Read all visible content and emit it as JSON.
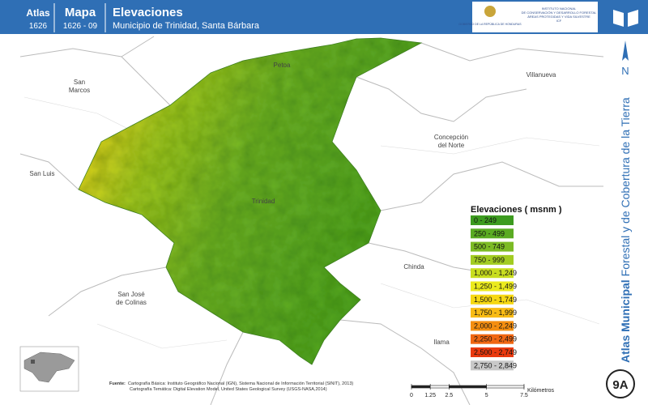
{
  "header": {
    "atlas_label": "Atlas",
    "atlas_code": "1626",
    "map_label": "Mapa",
    "map_code": "1626 - 09",
    "title": "Elevaciones",
    "subtitle": "Municipio de Trinidad, Santa Bárbara",
    "logo_left": "GOBIERNO DE LA REPÚBLICA DE HONDURAS",
    "logo_right": [
      "INSTITUTO NACIONAL",
      "DE CONSERVACIÓN Y DESARROLLO FORESTAL",
      "ÁREAS PROTEGIDAS Y VIDA SILVESTRE",
      "ICF"
    ]
  },
  "sidebar": {
    "north": "N",
    "title_bold": "Atlas Municipal",
    "title_rest": "Forestal y de Cobertura de la Tierra",
    "page": "9A"
  },
  "places": [
    {
      "lines": [
        "Petoa"
      ]
    },
    {
      "lines": [
        "San",
        "Marcos"
      ]
    },
    {
      "lines": [
        "Villanueva"
      ]
    },
    {
      "lines": [
        "Concepción",
        "del Norte"
      ]
    },
    {
      "lines": [
        "San Luis"
      ]
    },
    {
      "lines": [
        "Trinidad"
      ]
    },
    {
      "lines": [
        "Chinda"
      ]
    },
    {
      "lines": [
        "San José",
        "de Colinas"
      ]
    },
    {
      "lines": [
        "Ilama"
      ]
    }
  ],
  "legend": {
    "title": "Elevaciones ( msnm )",
    "items": [
      {
        "label": "0 - 249",
        "color": "#3c9b1f"
      },
      {
        "label": "250 - 499",
        "color": "#5aab23"
      },
      {
        "label": "500 - 749",
        "color": "#7cbb25"
      },
      {
        "label": "750 - 999",
        "color": "#a2cc22"
      },
      {
        "label": "1,000 - 1,249",
        "color": "#c8dd1f"
      },
      {
        "label": "1,250 - 1,499",
        "color": "#ebea1d"
      },
      {
        "label": "1,500 - 1,749",
        "color": "#f6d812"
      },
      {
        "label": "1,750 - 1,999",
        "color": "#f8bb15"
      },
      {
        "label": "2,000 - 2,249",
        "color": "#f48e10"
      },
      {
        "label": "2,250 - 2,499",
        "color": "#f06611"
      },
      {
        "label": "2,500 - 2,749",
        "color": "#ea3a10"
      },
      {
        "label": "2,750 - 2,849",
        "color": "#c8c8c8"
      }
    ]
  },
  "scale_bar": {
    "ticks": [
      0,
      1.25,
      2.5,
      5,
      7.5
    ],
    "unit": "Kilómetros"
  },
  "source": {
    "key": "Fuente:",
    "lines": [
      "Cartografía Básica: Instituto Geográfico Nacional (IGN), Sistema Nacional de Información Territorial (SINIT), 2013)",
      "Cartografía Temática: Digital Elevation Model, United States Geological Survey (USGS-NASA,2014)"
    ]
  }
}
